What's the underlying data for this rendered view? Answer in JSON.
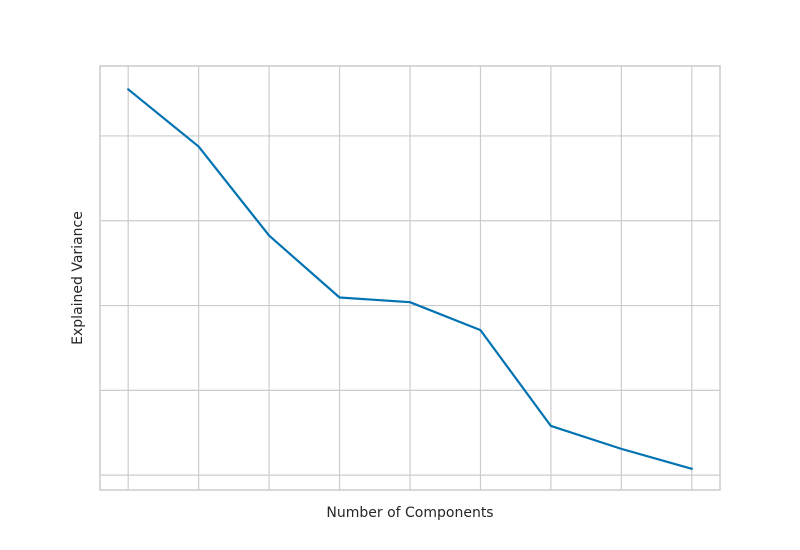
{
  "chart_data": {
    "type": "line",
    "title": "",
    "xlabel": "Number of Components",
    "ylabel": "Explained Variance",
    "x": [
      1,
      2,
      3,
      4,
      5,
      6,
      7,
      8,
      9
    ],
    "series": [
      {
        "name": "explained_variance",
        "color": "#0173B2",
        "values": [
          0.945,
          0.81,
          0.6,
          0.454,
          0.443,
          0.377,
          0.151,
          0.097,
          0.05
        ]
      }
    ],
    "xlim": [
      0.6,
      9.4
    ],
    "ylim": [
      0.0,
      1.0
    ],
    "xticks": [
      1,
      2,
      3,
      4,
      5,
      6,
      7,
      8,
      9
    ],
    "yticks": [
      0.035,
      0.235,
      0.435,
      0.635,
      0.835
    ],
    "show_tick_labels": false,
    "grid": true,
    "legend": false
  }
}
